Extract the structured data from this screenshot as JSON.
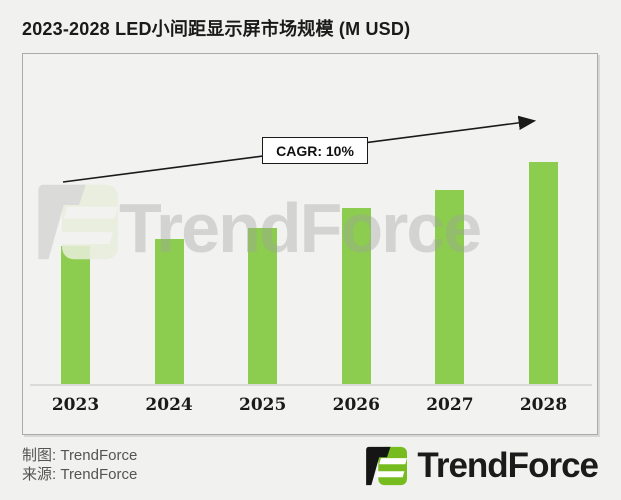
{
  "page": {
    "title": "2023-2028 LED小间距显示屏市场规模 (M USD)"
  },
  "chart_data": {
    "type": "bar",
    "title": "2023-2028 LED小间距显示屏市场规模 (M USD)",
    "categories": [
      "2023",
      "2024",
      "2025",
      "2026",
      "2027",
      "2028"
    ],
    "values": [
      138,
      145,
      156,
      176,
      194,
      222
    ],
    "values_unit": "relative bar height (no numeric value labels or axis shown)",
    "unit": "M USD",
    "annotation": "CAGR: 10%",
    "bar_color": "#8CCD50",
    "xlabel": "",
    "ylabel": "",
    "grid": false,
    "legend": "none",
    "value_axis_visible": false,
    "trend_arrow": "straight arrow rising left-to-right above bars"
  },
  "watermark": {
    "text": "TrendForce"
  },
  "footer": {
    "credit_line1": "制图: TrendForce",
    "credit_line2": "来源: TrendForce",
    "brand_name": "TrendForce"
  },
  "colors": {
    "background": "#F1F1EF",
    "panel_background": "#F2F2F0",
    "panel_border": "#ABABAB",
    "bar_green": "#8CCD50",
    "logo_green": "#76BC1F",
    "logo_black": "#151515",
    "text_dark": "#1A1A1A",
    "credit_gray": "#545454",
    "watermark_gray": "#D6D6D4",
    "axis_line": "#DBDBD9"
  }
}
